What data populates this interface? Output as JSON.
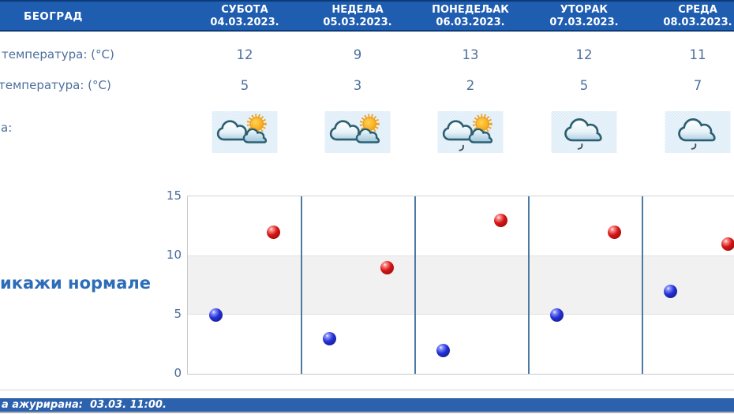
{
  "location": "БЕОГРАД",
  "columns": [
    {
      "day": "СУБОТА",
      "date": "04.03.2023."
    },
    {
      "day": "НЕДЕЉА",
      "date": "05.03.2023."
    },
    {
      "day": "ПОНЕДЕЉАК",
      "date": "06.03.2023."
    },
    {
      "day": "УТОРАК",
      "date": "07.03.2023."
    },
    {
      "day": "СРЕДА",
      "date": "08.03.2023."
    }
  ],
  "max_row": {
    "label": "температура: (°C)",
    "values": [
      "12",
      "9",
      "13",
      "12",
      "11"
    ]
  },
  "min_row": {
    "label": "температура: (°C)",
    "values": [
      "5",
      "3",
      "2",
      "5",
      "7"
    ]
  },
  "icons_row": {
    "label": "а:",
    "types": [
      "cloudy-sun",
      "cloudy-sun",
      "cloudy-sun-drizzle",
      "cloudy-drizzle",
      "cloudy-drizzle"
    ]
  },
  "normals_link_label": "икажи нормале",
  "footer_updated": "а ажурирана:  03.03. 11:00.",
  "colors": {
    "header_blue": "#1f5db1",
    "footer_blue": "#2b61ad",
    "max_dot_red": "#d41515",
    "min_dot_blue": "#2330d6",
    "text_blue_gray": "#4d6f9c",
    "link_blue": "#2d6db8"
  },
  "chart_data": {
    "type": "scatter",
    "categories": [
      "СУБОТА 04.03.2023.",
      "НЕДЕЉА 05.03.2023.",
      "ПОНЕДЕЉАК 06.03.2023.",
      "УТОРАК 07.03.2023.",
      "СРЕДА 08.03.2023."
    ],
    "series": [
      {
        "name": "max-temp",
        "color": "#d41515",
        "values": [
          12,
          9,
          13,
          12,
          11
        ]
      },
      {
        "name": "min-temp",
        "color": "#2330d6",
        "values": [
          5,
          3,
          2,
          5,
          7
        ]
      }
    ],
    "title": "",
    "xlabel": "",
    "ylabel": "",
    "ylim": [
      0,
      15
    ],
    "yticks": [
      0,
      5,
      10,
      15
    ],
    "shaded_band": [
      5,
      10
    ],
    "grid": "horizontal",
    "legend": "none"
  }
}
